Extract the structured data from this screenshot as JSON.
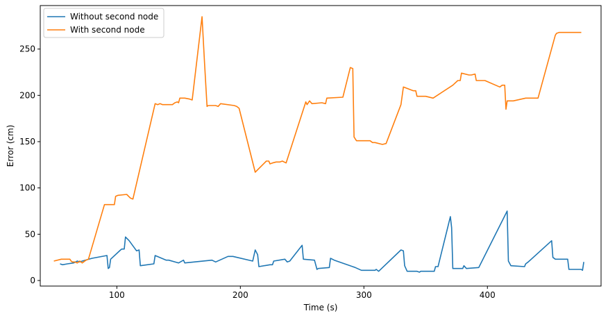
{
  "chart_data": {
    "type": "line",
    "title": "",
    "xlabel": "Time (s)",
    "ylabel": "Error (cm)",
    "xlim": [
      38,
      492
    ],
    "ylim": [
      -6,
      297
    ],
    "xticks": [
      100,
      200,
      300,
      400
    ],
    "yticks": [
      0,
      50,
      100,
      150,
      200,
      250
    ],
    "grid": false,
    "legend": "top-left",
    "series": [
      {
        "name": "Without second node",
        "color": "#1f77b4",
        "points": [
          [
            54,
            18
          ],
          [
            56,
            17
          ],
          [
            60,
            18
          ],
          [
            65,
            19
          ],
          [
            68,
            21
          ],
          [
            70,
            20
          ],
          [
            72,
            21
          ],
          [
            80,
            24
          ],
          [
            92,
            27
          ],
          [
            93,
            13
          ],
          [
            94,
            14
          ],
          [
            95,
            23
          ],
          [
            103,
            33
          ],
          [
            104,
            34
          ],
          [
            106,
            34
          ],
          [
            107,
            47
          ],
          [
            110,
            43
          ],
          [
            116,
            32
          ],
          [
            118,
            33
          ],
          [
            119,
            16
          ],
          [
            130,
            18
          ],
          [
            131,
            27
          ],
          [
            140,
            22
          ],
          [
            142,
            22
          ],
          [
            150,
            19
          ],
          [
            154,
            22
          ],
          [
            155,
            19
          ],
          [
            177,
            22
          ],
          [
            180,
            20
          ],
          [
            190,
            26
          ],
          [
            194,
            26
          ],
          [
            210,
            21
          ],
          [
            212,
            33
          ],
          [
            214,
            28
          ],
          [
            215,
            15
          ],
          [
            224,
            17
          ],
          [
            226,
            17
          ],
          [
            227,
            21
          ],
          [
            236,
            23
          ],
          [
            238,
            20
          ],
          [
            240,
            21
          ],
          [
            250,
            38
          ],
          [
            251,
            23
          ],
          [
            260,
            22
          ],
          [
            262,
            12
          ],
          [
            263,
            13
          ],
          [
            272,
            14
          ],
          [
            273,
            24
          ],
          [
            276,
            22
          ],
          [
            293,
            14
          ],
          [
            298,
            11
          ],
          [
            309,
            11
          ],
          [
            310,
            12
          ],
          [
            312,
            10
          ],
          [
            330,
            33
          ],
          [
            332,
            32
          ],
          [
            333,
            16
          ],
          [
            335,
            10
          ],
          [
            343,
            10
          ],
          [
            345,
            9
          ],
          [
            346,
            10
          ],
          [
            357,
            10
          ],
          [
            358,
            15
          ],
          [
            360,
            15
          ],
          [
            370,
            69
          ],
          [
            371,
            57
          ],
          [
            372,
            13
          ],
          [
            380,
            13
          ],
          [
            381,
            16
          ],
          [
            383,
            13
          ],
          [
            393,
            14
          ],
          [
            416,
            75
          ],
          [
            417,
            21
          ],
          [
            419,
            16
          ],
          [
            430,
            15
          ],
          [
            431,
            18
          ],
          [
            433,
            20
          ],
          [
            452,
            43
          ],
          [
            453,
            25
          ],
          [
            455,
            23
          ],
          [
            465,
            23
          ],
          [
            466,
            12
          ],
          [
            476,
            12
          ],
          [
            477,
            11
          ],
          [
            478,
            20
          ]
        ]
      },
      {
        "name": "With second node",
        "color": "#ff7f0e",
        "points": [
          [
            49,
            21
          ],
          [
            55,
            23
          ],
          [
            62,
            23
          ],
          [
            63,
            21
          ],
          [
            64,
            20
          ],
          [
            66,
            20
          ],
          [
            68,
            19
          ],
          [
            70,
            21
          ],
          [
            72,
            19
          ],
          [
            75,
            22
          ],
          [
            77,
            23
          ],
          [
            90,
            82
          ],
          [
            98,
            82
          ],
          [
            99,
            91
          ],
          [
            101,
            92
          ],
          [
            108,
            93
          ],
          [
            111,
            89
          ],
          [
            113,
            88
          ],
          [
            131,
            191
          ],
          [
            133,
            190
          ],
          [
            135,
            191
          ],
          [
            137,
            190
          ],
          [
            145,
            190
          ],
          [
            147,
            192
          ],
          [
            149,
            193
          ],
          [
            150,
            192
          ],
          [
            151,
            197
          ],
          [
            155,
            197
          ],
          [
            159,
            196
          ],
          [
            161,
            195
          ],
          [
            169,
            285
          ],
          [
            171,
            235
          ],
          [
            173,
            188
          ],
          [
            174,
            189
          ],
          [
            180,
            189
          ],
          [
            182,
            188
          ],
          [
            184,
            191
          ],
          [
            195,
            189
          ],
          [
            197,
            188
          ],
          [
            199,
            186
          ],
          [
            212,
            117
          ],
          [
            221,
            129
          ],
          [
            223,
            129
          ],
          [
            224,
            126
          ],
          [
            226,
            127
          ],
          [
            229,
            128
          ],
          [
            232,
            128
          ],
          [
            234,
            129
          ],
          [
            237,
            127
          ],
          [
            253,
            193
          ],
          [
            254,
            190
          ],
          [
            256,
            194
          ],
          [
            258,
            191
          ],
          [
            266,
            192
          ],
          [
            269,
            191
          ],
          [
            270,
            197
          ],
          [
            283,
            198
          ],
          [
            289,
            230
          ],
          [
            291,
            229
          ],
          [
            292,
            155
          ],
          [
            294,
            151
          ],
          [
            305,
            151
          ],
          [
            307,
            149
          ],
          [
            309,
            149
          ],
          [
            315,
            147
          ],
          [
            318,
            148
          ],
          [
            330,
            190
          ],
          [
            332,
            209
          ],
          [
            340,
            205
          ],
          [
            342,
            205
          ],
          [
            343,
            199
          ],
          [
            350,
            199
          ],
          [
            356,
            197
          ],
          [
            372,
            211
          ],
          [
            376,
            216
          ],
          [
            378,
            216
          ],
          [
            379,
            224
          ],
          [
            385,
            222
          ],
          [
            387,
            222
          ],
          [
            390,
            223
          ],
          [
            391,
            216
          ],
          [
            398,
            216
          ],
          [
            410,
            209
          ],
          [
            412,
            211
          ],
          [
            414,
            211
          ],
          [
            415,
            185
          ],
          [
            416,
            194
          ],
          [
            421,
            194
          ],
          [
            431,
            197
          ],
          [
            441,
            197
          ],
          [
            455,
            265
          ],
          [
            456,
            267
          ],
          [
            458,
            268
          ],
          [
            462,
            268
          ],
          [
            465,
            268
          ],
          [
            473,
            268
          ],
          [
            476,
            268
          ]
        ]
      }
    ]
  }
}
